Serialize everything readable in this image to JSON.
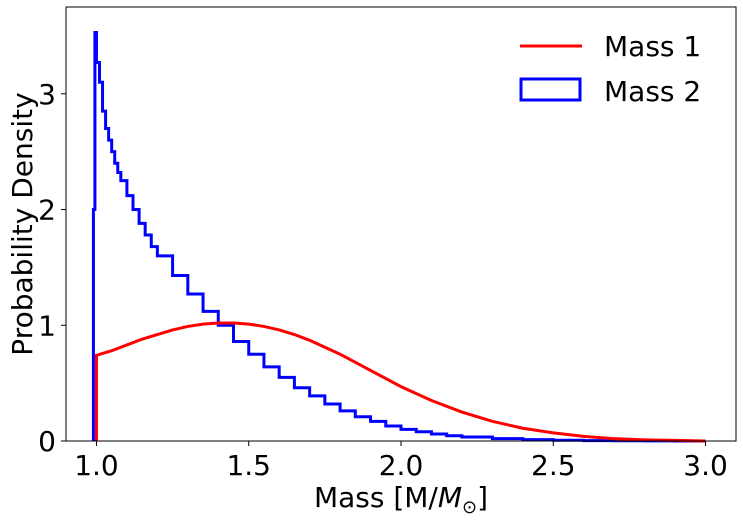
{
  "chart_data": {
    "type": "line",
    "title": "",
    "xlabel": "Mass  [M/M⊙]",
    "xlabel_parts": {
      "prefix": "Mass  [M/",
      "italic": "M",
      "sub": "⊙",
      "suffix": "]"
    },
    "ylabel": "Probability Density",
    "xlim": [
      0.9,
      3.1
    ],
    "ylim": [
      0,
      3.75
    ],
    "xticks": [
      1.0,
      1.5,
      2.0,
      2.5,
      3.0
    ],
    "xtick_labels": [
      "1.0",
      "1.5",
      "2.0",
      "2.5",
      "3.0"
    ],
    "yticks": [
      0,
      1,
      2,
      3
    ],
    "ytick_labels": [
      "0",
      "1",
      "2",
      "3"
    ],
    "grid": false,
    "legend_position": "top-right",
    "series": [
      {
        "name": "Mass 1",
        "kind": "line",
        "color": "#ff0000",
        "x": [
          1.0,
          1.05,
          1.1,
          1.15,
          1.2,
          1.25,
          1.3,
          1.35,
          1.4,
          1.45,
          1.5,
          1.55,
          1.6,
          1.65,
          1.7,
          1.75,
          1.8,
          1.85,
          1.9,
          1.95,
          2.0,
          2.1,
          2.2,
          2.3,
          2.4,
          2.5,
          2.6,
          2.7,
          2.8,
          2.9,
          3.0
        ],
        "y": [
          0.74,
          0.78,
          0.83,
          0.88,
          0.92,
          0.96,
          0.99,
          1.01,
          1.02,
          1.02,
          1.01,
          0.99,
          0.96,
          0.92,
          0.87,
          0.81,
          0.75,
          0.68,
          0.61,
          0.54,
          0.47,
          0.35,
          0.25,
          0.17,
          0.11,
          0.07,
          0.04,
          0.02,
          0.01,
          0.005,
          0.0
        ]
      },
      {
        "name": "Mass 2",
        "kind": "step-histogram",
        "color": "#0000ff",
        "x": [
          0.99,
          0.995,
          1.0,
          1.01,
          1.02,
          1.03,
          1.04,
          1.05,
          1.06,
          1.07,
          1.08,
          1.1,
          1.12,
          1.14,
          1.16,
          1.18,
          1.2,
          1.25,
          1.3,
          1.35,
          1.4,
          1.45,
          1.5,
          1.55,
          1.6,
          1.65,
          1.7,
          1.75,
          1.8,
          1.85,
          1.9,
          1.95,
          2.0,
          2.05,
          2.1,
          2.15,
          2.2,
          2.3,
          2.4,
          2.5,
          2.6,
          2.7,
          2.8,
          2.9,
          3.0
        ],
        "y": [
          2.0,
          3.53,
          3.27,
          3.1,
          2.85,
          2.7,
          2.6,
          2.5,
          2.4,
          2.32,
          2.25,
          2.12,
          2.0,
          1.88,
          1.78,
          1.68,
          1.6,
          1.43,
          1.27,
          1.12,
          1.0,
          0.86,
          0.75,
          0.64,
          0.55,
          0.46,
          0.39,
          0.32,
          0.26,
          0.21,
          0.17,
          0.13,
          0.1,
          0.08,
          0.06,
          0.045,
          0.035,
          0.02,
          0.012,
          0.006,
          0.003,
          0.002,
          0.001,
          0.0005,
          0.0
        ]
      }
    ]
  }
}
